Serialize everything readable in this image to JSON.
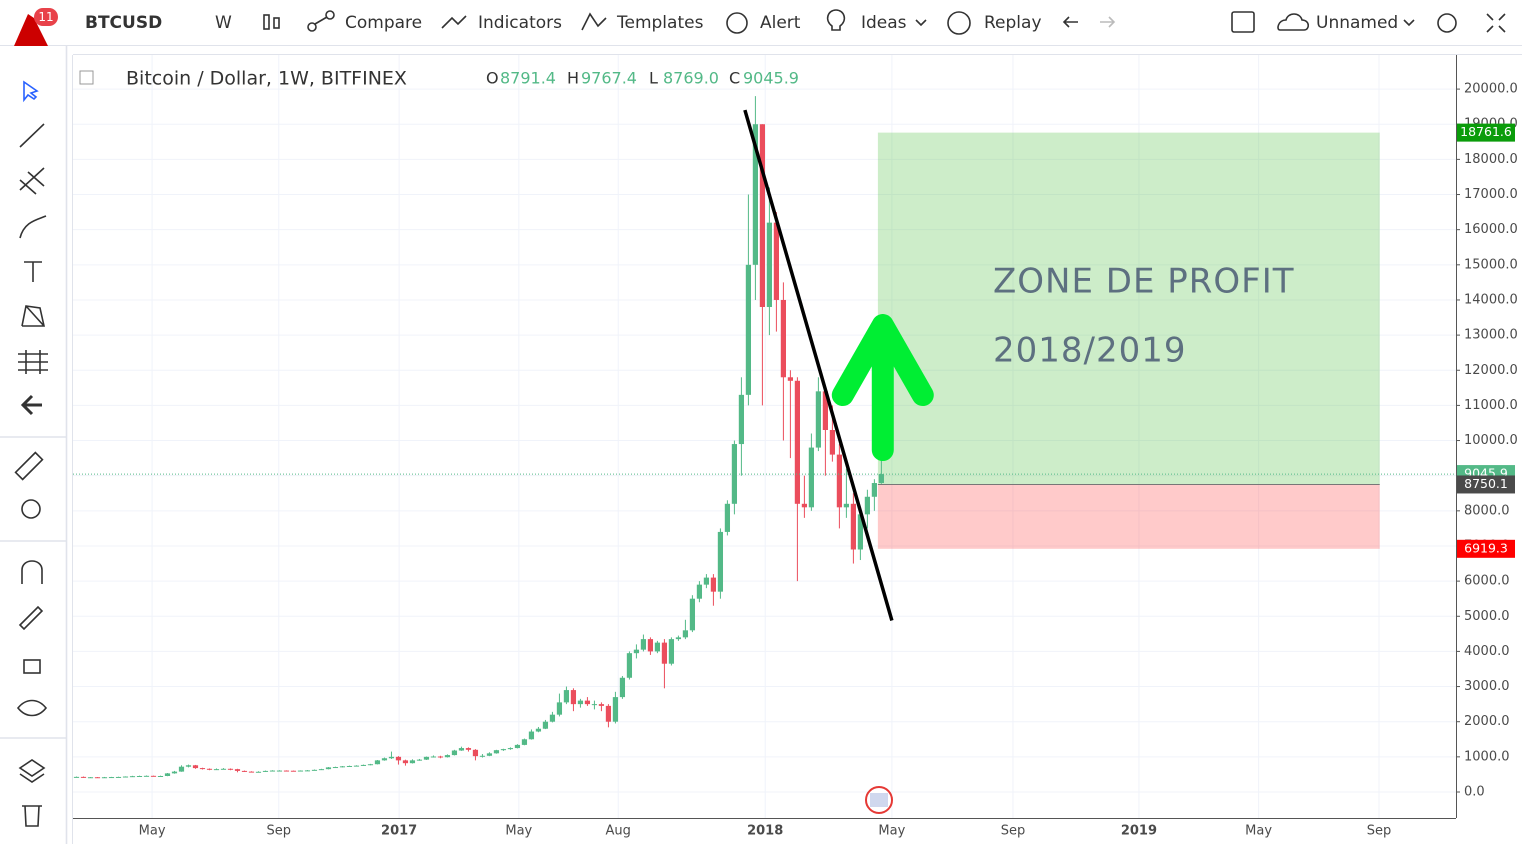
{
  "toolbar": {
    "badge": "11",
    "symbol": "BTCUSD",
    "interval": "W",
    "items": [
      "Compare",
      "Indicators",
      "Templates",
      "Alert",
      "Ideas",
      "Replay"
    ],
    "layout_name": "Unnamed"
  },
  "chart_data": {
    "type": "candlestick",
    "title": "Bitcoin / Dollar, 1W, BITFINEX",
    "ohlc_legend": [
      {
        "label": "O",
        "value": "8791.4"
      },
      {
        "label": "H",
        "value": "9767.4"
      },
      {
        "label": "L",
        "value": "8769.0"
      },
      {
        "label": "C",
        "value": "9045.9"
      }
    ],
    "up_color": "#53b987",
    "down_color": "#eb4d5c",
    "open": [
      420,
      430,
      415,
      420,
      418,
      420,
      425,
      428,
      440,
      450,
      455,
      460,
      450,
      455,
      530,
      580,
      720,
      760,
      680,
      660,
      640,
      650,
      660,
      650,
      600,
      580,
      575,
      575,
      600,
      610,
      610,
      605,
      600,
      610,
      615,
      630,
      650,
      700,
      710,
      730,
      740,
      750,
      770,
      790,
      900,
      960,
      1000,
      900,
      820,
      900,
      920,
      1000,
      1010,
      990,
      1050,
      1180,
      1250,
      1200,
      1020,
      1030,
      1100,
      1190,
      1220,
      1250,
      1340,
      1500,
      1720,
      1800,
      2000,
      2200,
      2550,
      2900,
      2500,
      2600,
      2500,
      2500,
      2450,
      2000,
      2700,
      3250,
      3950,
      4050,
      4350,
      4000,
      4250,
      3650,
      4350,
      4400,
      4600,
      5500,
      5900,
      6100,
      5700,
      7400,
      8200,
      9900,
      11300,
      15000,
      19000,
      13800,
      16200,
      14000,
      11800,
      11700,
      8200,
      8100,
      9800,
      11400,
      10300,
      9600,
      8100,
      8200,
      6900,
      7900,
      8400,
      8791.4
    ],
    "high": [
      440,
      440,
      425,
      425,
      428,
      430,
      435,
      445,
      460,
      465,
      470,
      465,
      465,
      540,
      600,
      760,
      780,
      770,
      690,
      670,
      670,
      680,
      670,
      660,
      610,
      590,
      590,
      610,
      620,
      620,
      615,
      610,
      615,
      625,
      640,
      660,
      710,
      720,
      740,
      750,
      760,
      780,
      800,
      910,
      980,
      1150,
      1020,
      920,
      930,
      940,
      1010,
      1040,
      1030,
      1070,
      1200,
      1290,
      1270,
      1220,
      1080,
      1130,
      1200,
      1230,
      1270,
      1360,
      1520,
      1780,
      1850,
      2050,
      2280,
      2800,
      3000,
      2950,
      2650,
      2700,
      2600,
      2550,
      2500,
      2850,
      3300,
      4000,
      4200,
      4480,
      4400,
      4300,
      4350,
      4400,
      4450,
      4900,
      5600,
      6000,
      6200,
      6200,
      7500,
      8300,
      10000,
      11800,
      17000,
      19800,
      19000,
      17200,
      16500,
      14500,
      12000,
      11800,
      9000,
      10200,
      11800,
      11500,
      11000,
      9900,
      9200,
      8500,
      8000,
      8600,
      8900,
      9767.4
    ],
    "low": [
      410,
      405,
      405,
      410,
      412,
      415,
      418,
      420,
      435,
      445,
      450,
      440,
      445,
      450,
      520,
      575,
      700,
      660,
      640,
      620,
      630,
      640,
      620,
      560,
      570,
      565,
      565,
      570,
      595,
      600,
      595,
      590,
      595,
      605,
      610,
      625,
      645,
      690,
      700,
      720,
      730,
      740,
      760,
      785,
      890,
      940,
      780,
      750,
      810,
      890,
      910,
      980,
      960,
      980,
      1040,
      1170,
      1150,
      900,
      980,
      1020,
      1090,
      1170,
      1200,
      1240,
      1330,
      1490,
      1700,
      1790,
      1980,
      2150,
      2500,
      2300,
      2400,
      2450,
      2350,
      2300,
      1840,
      1950,
      2650,
      3200,
      3800,
      4000,
      3900,
      3950,
      2950,
      3600,
      4300,
      4350,
      4550,
      5400,
      5800,
      5300,
      5500,
      7300,
      7900,
      9000,
      11000,
      14000,
      11000,
      13000,
      13100,
      10000,
      9500,
      6000,
      7800,
      8000,
      9700,
      9000,
      9400,
      7500,
      7800,
      6500,
      6600,
      7500,
      8000,
      8769
    ],
    "close": [
      430,
      415,
      420,
      418,
      420,
      425,
      428,
      440,
      450,
      455,
      460,
      450,
      455,
      530,
      580,
      720,
      760,
      680,
      660,
      640,
      650,
      660,
      650,
      600,
      580,
      575,
      575,
      600,
      610,
      610,
      605,
      600,
      610,
      615,
      630,
      650,
      700,
      710,
      730,
      740,
      750,
      770,
      790,
      900,
      960,
      1000,
      900,
      820,
      900,
      920,
      1000,
      1010,
      990,
      1050,
      1180,
      1250,
      1200,
      1020,
      1030,
      1100,
      1190,
      1220,
      1250,
      1340,
      1500,
      1720,
      1800,
      2000,
      2200,
      2550,
      2900,
      2500,
      2600,
      2500,
      2500,
      2450,
      2000,
      2700,
      3250,
      3950,
      4050,
      4350,
      4000,
      4250,
      3650,
      4350,
      4400,
      4600,
      5500,
      5900,
      6100,
      5700,
      7400,
      8200,
      9900,
      11300,
      15000,
      19000,
      13800,
      16200,
      14000,
      11800,
      11700,
      8200,
      8100,
      9800,
      11400,
      10300,
      9600,
      8100,
      8200,
      6900,
      7900,
      8400,
      8791.4,
      9045.9
    ],
    "xlim": [
      0,
      197.6
    ],
    "xticks": [
      {
        "value": 11.3,
        "label": "May"
      },
      {
        "value": 29.4,
        "label": "Sep"
      },
      {
        "value": 46.6,
        "label": "2017"
      },
      {
        "value": 63.7,
        "label": "May"
      },
      {
        "value": 77.9,
        "label": "Aug"
      },
      {
        "value": 98.9,
        "label": "2018"
      },
      {
        "value": 117,
        "label": "May"
      },
      {
        "value": 134.3,
        "label": "Sep"
      },
      {
        "value": 152.3,
        "label": "2019"
      },
      {
        "value": 169.4,
        "label": "May"
      },
      {
        "value": 186.6,
        "label": "Sep"
      }
    ],
    "ylim": [
      -740,
      20970
    ],
    "yticks": [
      {
        "value": 0,
        "label": "0.0"
      },
      {
        "value": 1000,
        "label": "1000.0"
      },
      {
        "value": 2000,
        "label": "2000.0"
      },
      {
        "value": 3000,
        "label": "3000.0"
      },
      {
        "value": 4000,
        "label": "4000.0"
      },
      {
        "value": 5000,
        "label": "5000.0"
      },
      {
        "value": 6000,
        "label": "6000.0"
      },
      {
        "value": 7000,
        "label": "7000.0"
      },
      {
        "value": 8000,
        "label": "8000.0"
      },
      {
        "value": 9000,
        "label": "9000.0"
      },
      {
        "value": 10000,
        "label": "10000.0"
      },
      {
        "value": 11000,
        "label": "11000.0"
      },
      {
        "value": 12000,
        "label": "12000.0"
      },
      {
        "value": 13000,
        "label": "13000.0"
      },
      {
        "value": 14000,
        "label": "14000.0"
      },
      {
        "value": 15000,
        "label": "15000.0"
      },
      {
        "value": 16000,
        "label": "16000.0"
      },
      {
        "value": 17000,
        "label": "17000.0"
      },
      {
        "value": 18000,
        "label": "18000.0"
      },
      {
        "value": 19000,
        "label": "19000.0"
      },
      {
        "value": 20000,
        "label": "20000.0"
      }
    ],
    "grid": true,
    "position": {
      "x": [
        115,
        186.7
      ],
      "target": 18761.6,
      "entry": 8750.1,
      "stop": 6919.3,
      "target_color": "#0a9c0a",
      "entry_color": "#4a4a4a",
      "stop_color": "#ff0000",
      "profit_fill": "rgba(76,190,60,0.28)",
      "loss_fill": "rgba(255,80,80,0.3)"
    },
    "trend_line": {
      "x": [
        96,
        117
      ],
      "y": [
        19403,
        4880
      ],
      "color": "#000000"
    },
    "arrow": {
      "x": 115.7,
      "y": [
        9730,
        13286
      ],
      "color": "#00ee33"
    },
    "annotations": [
      "ZONE DE PROFIT",
      "2018/2019"
    ]
  }
}
